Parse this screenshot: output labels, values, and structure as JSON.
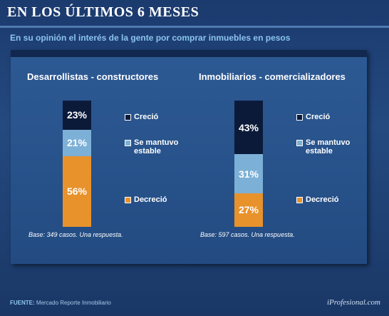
{
  "header": {
    "title": "EN LOS ÚLTIMOS 6 MESES",
    "subtitle": "En su opinión el interés de la gente por comprar inmuebles en pesos"
  },
  "footer": {
    "source_label": "FUENTE:",
    "source": "Mercado Reporte Inmobiliario",
    "brand": "iProfesional.com"
  },
  "chart_data": [
    {
      "type": "stacked_bar",
      "title": "Desarrollistas - constructores",
      "note": "Base: 349 casos. Una respuesta.",
      "series": [
        {
          "name": "Creció",
          "color": "#0c1a3a",
          "values": [
            23
          ],
          "value_labels": [
            "23%"
          ]
        },
        {
          "name": "Se mantuvo estable",
          "color": "#7db0d6",
          "values": [
            21
          ],
          "value_labels": [
            "21%"
          ]
        },
        {
          "name": "Decreció",
          "color": "#e8922c",
          "values": [
            56
          ],
          "value_labels": [
            "56%"
          ]
        }
      ]
    },
    {
      "type": "stacked_bar",
      "title": "Inmobiliarios - comercializadores",
      "note": "Base: 597 casos. Una respuesta.",
      "series": [
        {
          "name": "Creció",
          "color": "#0c1a3a",
          "values": [
            43
          ],
          "value_labels": [
            "43%"
          ]
        },
        {
          "name": "Se mantuvo estable",
          "color": "#7db0d6",
          "values": [
            31
          ],
          "value_labels": [
            "31%"
          ]
        },
        {
          "name": "Decreció",
          "color": "#e8922c",
          "values": [
            27
          ],
          "value_labels": [
            "27%"
          ]
        }
      ]
    }
  ]
}
